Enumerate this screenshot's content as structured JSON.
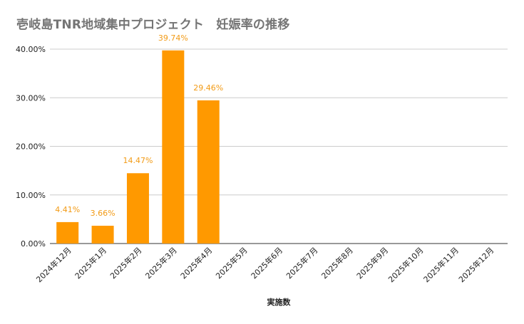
{
  "chart_data": {
    "type": "bar",
    "title": "壱岐島TNR地域集中プロジェクト　妊娠率の推移",
    "xlabel": "実施数",
    "ylabel": "",
    "ylim": [
      0,
      40
    ],
    "y_tick_labels": [
      "0.00%",
      "10.00%",
      "20.00%",
      "30.00%",
      "40.00%"
    ],
    "categories": [
      "2024年12月",
      "2025年1月",
      "2025年2月",
      "2025年3月",
      "2025年4月",
      "2025年5月",
      "2025年6月",
      "2025年7月",
      "2025年8月",
      "2025年9月",
      "2025年10月",
      "2025年11月",
      "2025年12月"
    ],
    "values": [
      4.41,
      3.66,
      14.47,
      39.74,
      29.46,
      null,
      null,
      null,
      null,
      null,
      null,
      null,
      null
    ],
    "data_labels": [
      "4.41%",
      "3.66%",
      "14.47%",
      "39.74%",
      "29.46%",
      "",
      "",
      "",
      "",
      "",
      "",
      "",
      ""
    ],
    "grid": true,
    "legend": "none",
    "colors": {
      "bar": "#ff9900",
      "data_label": "#f29b16",
      "grid": "#cccccc",
      "axis": "#333333",
      "title": "#757575",
      "text": "#222222"
    }
  }
}
